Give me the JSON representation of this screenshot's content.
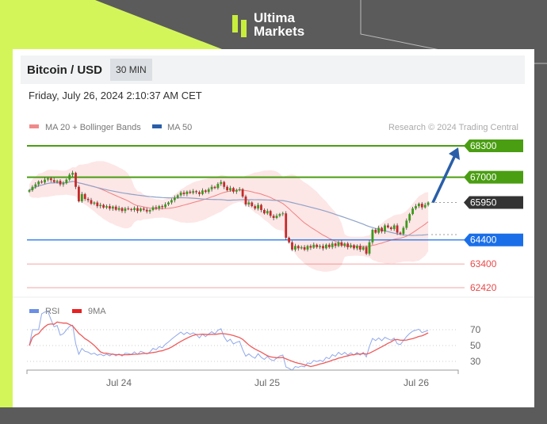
{
  "brand": {
    "name_line1": "Ultima",
    "name_line2": "Markets",
    "accent": "#d4f55a"
  },
  "header": {
    "title": "Bitcoin / USD",
    "timeframe": "30 MIN",
    "datetime": "Friday, July 26, 2024 2:10:37 AM CET"
  },
  "legend": {
    "ma20": "MA 20 + Bollinger Bands",
    "ma50": "MA 50",
    "credit": "Research © 2024 Trading Central",
    "rsi": "RSI",
    "rsi_ma": "9MA"
  },
  "chart_data": {
    "type": "candlestick",
    "x_ticks": [
      "Jul 24",
      "Jul 25",
      "Jul 26"
    ],
    "levels": [
      {
        "value": 68300,
        "label": "68300",
        "color": "#4a9e12",
        "style": "box"
      },
      {
        "value": 67000,
        "label": "67000",
        "color": "#4a9e12",
        "style": "box"
      },
      {
        "value": 65950,
        "label": "65950",
        "color": "#333333",
        "style": "box-current"
      },
      {
        "value": 64400,
        "label": "64400",
        "color": "#1a6fe8",
        "style": "box"
      },
      {
        "value": 63400,
        "label": "63400",
        "color": "#e84a4a",
        "style": "text"
      },
      {
        "value": 62420,
        "label": "62420",
        "color": "#e84a4a",
        "style": "text"
      }
    ],
    "forecast_arrow": {
      "from": 65950,
      "to": 68300,
      "color": "#2a5ea8"
    },
    "closes": [
      66460,
      66600,
      66700,
      66820,
      66780,
      66900,
      66950,
      66880,
      66800,
      66850,
      66700,
      66750,
      66900,
      67100,
      67180,
      66600,
      66000,
      66300,
      66100,
      66050,
      65900,
      65950,
      65800,
      65850,
      65740,
      65800,
      65700,
      65780,
      65650,
      65720,
      65600,
      65700,
      65680,
      65640,
      65720,
      65600,
      65700,
      65650,
      65580,
      65640,
      65750,
      65700,
      65800,
      65760,
      65870,
      65950,
      66050,
      66150,
      66250,
      66360,
      66300,
      66400,
      66350,
      66420,
      66380,
      66300,
      66450,
      66390,
      66500,
      66600,
      66550,
      66720,
      66800,
      66600,
      66460,
      66550,
      66400,
      66460,
      66500,
      66200,
      65870,
      65950,
      65800,
      65700,
      65850,
      65640,
      65500,
      65600,
      65400,
      65310,
      65400,
      65470,
      65500,
      64490,
      64300,
      64000,
      64150,
      64050,
      64100,
      64000,
      64150,
      64080,
      64200,
      64100,
      64150,
      64050,
      64200,
      64100,
      64250,
      64150,
      64300,
      64160,
      64250,
      64100,
      64180,
      64050,
      64150,
      64000,
      64100,
      63830,
      64300,
      64820,
      64700,
      64900,
      64750,
      65000,
      64920,
      64850,
      65000,
      64700,
      64650,
      64900,
      65200,
      65470,
      65700,
      65800,
      65900,
      65750,
      65850,
      65950
    ],
    "rsi_ticks": [
      70,
      50,
      30
    ],
    "colors": {
      "up": "#3c9a1a",
      "down": "#c42a2a",
      "ma20": "#f08080",
      "band": "#fde0e0",
      "ma50": "#8ea3c8",
      "rsi": "#8fa8ea",
      "rsi_ma": "#ee5a5a"
    }
  }
}
